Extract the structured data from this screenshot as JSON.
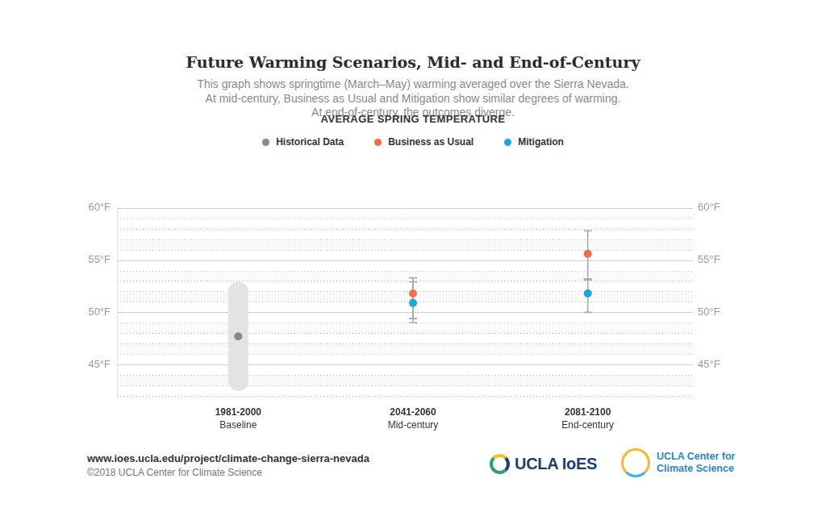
{
  "chart_data": {
    "type": "scatter",
    "title": "Future Warming Scenarios, Mid- and End-of-Century",
    "subtitle": [
      "This graph shows springtime (March–May) warming averaged over the Sierra Nevada.",
      "At mid-century, Business as Usual and Mitigation show similar degrees of warming.",
      "At end-of-century, the outcomes diverge."
    ],
    "chart_title": "AVERAGE SPRING TEMPERATURE",
    "categories": [
      "1981-2000",
      "2041-2060",
      "2081-2100"
    ],
    "category_sublabels": [
      "Baseline",
      "Mid-century",
      "End-century"
    ],
    "series": [
      {
        "name": "Historical Data",
        "color": "#8a8a8a",
        "values": [
          47.7,
          null,
          null
        ],
        "range": [
          [
            42.5,
            52.9
          ],
          null,
          null
        ]
      },
      {
        "name": "Business as Usual",
        "color": "#f26d4b",
        "values": [
          null,
          51.8,
          55.6
        ],
        "error": [
          null,
          [
            49.4,
            53.3
          ],
          [
            53.1,
            57.8
          ]
        ]
      },
      {
        "name": "Mitigation",
        "color": "#1ba7de",
        "values": [
          null,
          50.9,
          51.8
        ],
        "error": [
          null,
          [
            49.0,
            52.9
          ],
          [
            50.0,
            53.2
          ]
        ]
      }
    ],
    "ylim": [
      42,
      60
    ],
    "yticks": [
      {
        "value": 45,
        "label": "45°F"
      },
      {
        "value": 50,
        "label": "50°F"
      },
      {
        "value": 55,
        "label": "55°F"
      },
      {
        "value": 60,
        "label": "60°F"
      }
    ],
    "minor_yticks": [
      42,
      43,
      44,
      46,
      47,
      48,
      49,
      51,
      52,
      53,
      54,
      56,
      57,
      58,
      59
    ],
    "grid": true,
    "legend": "top",
    "source": "www.ioes.ucla.edu/project/climate-change-sierra-nevada",
    "copyright": "©2018 UCLA Center for Climate Science",
    "logos": [
      [
        "UCLA IoES"
      ],
      [
        "UCLA Center for",
        "Climate Science"
      ]
    ]
  }
}
